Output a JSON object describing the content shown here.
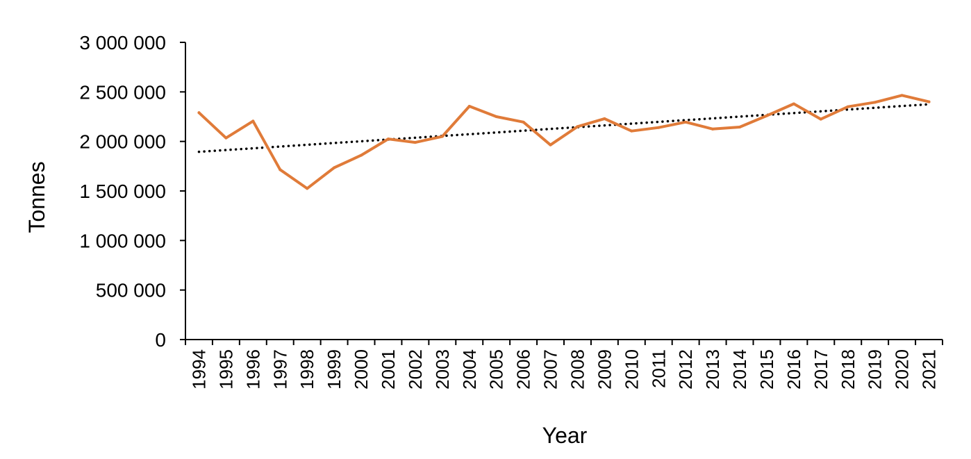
{
  "chart_data": {
    "type": "line",
    "title": "",
    "xlabel": "Year",
    "ylabel": "Tonnes",
    "categories": [
      "1994",
      "1995",
      "1996",
      "1997",
      "1998",
      "1999",
      "2000",
      "2001",
      "2002",
      "2003",
      "2004",
      "2005",
      "2006",
      "2007",
      "2008",
      "2009",
      "2010",
      "2011",
      "2012",
      "2013",
      "2014",
      "2015",
      "2016",
      "2017",
      "2018",
      "2019",
      "2020",
      "2021"
    ],
    "series": [
      {
        "values": [
          2290000,
          2035000,
          2205000,
          1715000,
          1525000,
          1735000,
          1860000,
          2025000,
          1990000,
          2050000,
          2355000,
          2250000,
          2195000,
          1965000,
          2150000,
          2230000,
          2105000,
          2140000,
          2195000,
          2125000,
          2145000,
          2260000,
          2380000,
          2225000,
          2350000,
          2395000,
          2465000,
          2400000
        ],
        "color": "#E07B39"
      }
    ],
    "trendline": {
      "type": "linear",
      "start": 1895000,
      "end": 2375000,
      "color": "#000000",
      "style": "dotted"
    },
    "ylim": [
      0,
      3000000
    ],
    "yticks": [
      0,
      500000,
      1000000,
      1500000,
      2000000,
      2500000,
      3000000
    ],
    "ytick_labels": [
      "0",
      "500 000",
      "1 000 000",
      "1 500 000",
      "2 000 000",
      "2 500 000",
      "3 000 000"
    ],
    "grid": false,
    "legend": "none"
  }
}
